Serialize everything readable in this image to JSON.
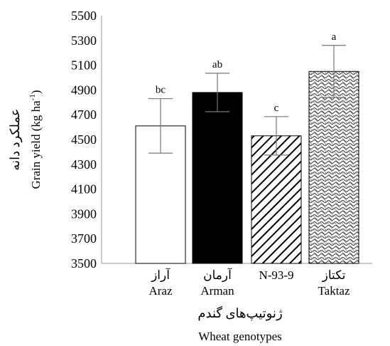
{
  "chart_data": {
    "type": "bar",
    "categories": [
      {
        "fa": "آراز",
        "en": "Araz"
      },
      {
        "fa": "آرمان",
        "en": "Arman"
      },
      {
        "fa": "",
        "en": "N-93-9"
      },
      {
        "fa": "تکتاز",
        "en": "Taktaz"
      }
    ],
    "values": [
      4610,
      4880,
      4530,
      5050
    ],
    "errors": [
      220,
      155,
      155,
      210
    ],
    "letters": [
      "bc",
      "ab",
      "c",
      "a"
    ],
    "fills": [
      "white",
      "black",
      "diagonal-lines",
      "wave-pattern"
    ],
    "ylim": [
      3500,
      5500
    ],
    "yticks": [
      3500,
      3700,
      3900,
      4100,
      4300,
      4500,
      4700,
      4900,
      5100,
      5300,
      5500
    ],
    "ylabel_fa": "عملکرد دانه",
    "ylabel_en": "Grain yield (kg ha",
    "ylabel_en_sup": "-1",
    "ylabel_en_close": ")",
    "xlabel_fa": "ژنوتیپ‌های گندم",
    "xlabel_en": "Wheat genotypes",
    "grid": false,
    "legend": "none"
  }
}
